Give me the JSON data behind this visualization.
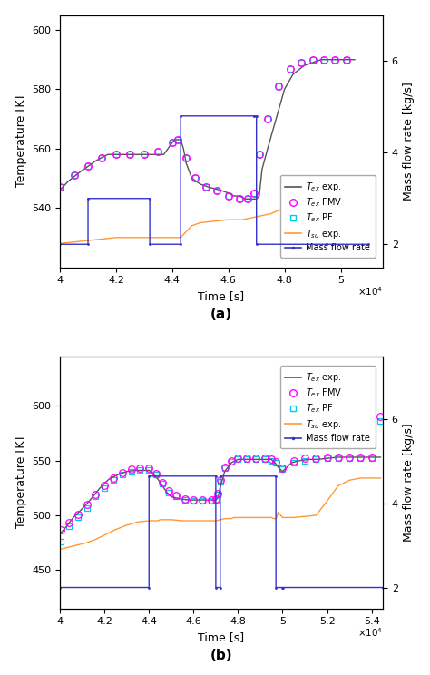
{
  "panel_a": {
    "xlim": [
      40000,
      51500
    ],
    "xticks": [
      40000,
      42000,
      44000,
      46000,
      48000,
      50000
    ],
    "xticklabels": [
      "4",
      "4.2",
      "4.4",
      "4.6",
      "4.8",
      "5"
    ],
    "temp_ylim": [
      520,
      605
    ],
    "temp_yticks": [
      540,
      560,
      580,
      600
    ],
    "mfr_ylim": [
      1.5,
      7.0
    ],
    "mfr_yticks": [
      2,
      4,
      6
    ],
    "T_ex_exp_x": [
      40000,
      40300,
      40700,
      41000,
      41300,
      41700,
      42000,
      42300,
      42700,
      43000,
      43300,
      43700,
      44000,
      44100,
      44200,
      44300,
      44400,
      44500,
      44700,
      45000,
      45300,
      45700,
      46000,
      46200,
      46400,
      46600,
      46800,
      47000,
      47100,
      47200,
      47400,
      47700,
      48000,
      48300,
      48700,
      49000,
      49300,
      49700,
      50000,
      50300,
      50500
    ],
    "T_ex_exp_y": [
      546,
      549,
      552,
      554,
      556,
      558,
      558,
      558,
      558,
      558,
      558,
      558,
      562,
      563,
      563,
      563,
      560,
      555,
      550,
      548,
      547,
      546,
      545,
      544,
      544,
      543,
      543,
      543,
      544,
      553,
      560,
      570,
      580,
      585,
      588,
      589,
      590,
      590,
      590,
      590,
      590
    ],
    "T_ex_FMV_x": [
      40000,
      40500,
      41000,
      41500,
      42000,
      42500,
      43000,
      43500,
      44000,
      44200,
      44500,
      44800,
      45200,
      45600,
      46000,
      46400,
      46700,
      46900,
      47100,
      47400,
      47800,
      48200,
      48600,
      49000,
      49400,
      49800,
      50200
    ],
    "T_ex_FMV_y": [
      547,
      551,
      554,
      557,
      558,
      558,
      558,
      559,
      562,
      563,
      557,
      550,
      547,
      546,
      544,
      543,
      543,
      545,
      558,
      570,
      581,
      587,
      589,
      590,
      590,
      590,
      590
    ],
    "T_ex_PF_x": [
      40000,
      40500,
      41000,
      41500,
      42000,
      42500,
      43000,
      43500,
      44000,
      44200,
      44500,
      44800,
      45200,
      45600,
      46000,
      46400,
      46700,
      46900,
      47100,
      47400,
      47800,
      48200,
      48600,
      49000,
      49400,
      49800,
      50200
    ],
    "T_ex_PF_y": [
      547,
      551,
      554,
      557,
      558,
      558,
      558,
      559,
      562,
      563,
      557,
      550,
      547,
      546,
      544,
      543,
      543,
      545,
      558,
      570,
      581,
      587,
      589,
      590,
      590,
      590,
      590
    ],
    "T_su_exp_x": [
      40000,
      41000,
      42000,
      43000,
      44000,
      44300,
      44400,
      44500,
      44600,
      44700,
      45000,
      46000,
      46500,
      47000,
      47500,
      48000,
      48500,
      49000,
      49500,
      50000,
      50500
    ],
    "T_su_exp_y": [
      528,
      529,
      530,
      530,
      530,
      530,
      531,
      532,
      533,
      534,
      535,
      536,
      536,
      537,
      538,
      540,
      540,
      541,
      541,
      541,
      541
    ],
    "mfr_x": [
      40000,
      41000,
      41001,
      43200,
      43201,
      44300,
      44301,
      46900,
      46901,
      47000,
      47001,
      49500,
      49501,
      51000
    ],
    "mfr_y": [
      2.0,
      2.0,
      3.0,
      3.0,
      2.0,
      2.0,
      4.8,
      4.8,
      4.8,
      4.8,
      2.0,
      2.0,
      2.0,
      2.0
    ],
    "label": "(a)"
  },
  "panel_b": {
    "xlim": [
      40000,
      54500
    ],
    "xticks": [
      40000,
      42000,
      44000,
      46000,
      48000,
      50000,
      52000,
      54000
    ],
    "xticklabels": [
      "4",
      "4.2",
      "4.4",
      "4.6",
      "4.8",
      "5",
      "5.2",
      "5.4"
    ],
    "temp_ylim": [
      415,
      645
    ],
    "temp_yticks": [
      450,
      500,
      550,
      600
    ],
    "mfr_ylim": [
      1.5,
      7.5
    ],
    "mfr_yticks": [
      2,
      4,
      6
    ],
    "T_ex_exp_x": [
      40050,
      40300,
      40600,
      41000,
      41400,
      41800,
      42200,
      42600,
      43000,
      43400,
      43800,
      44000,
      44100,
      44200,
      44300,
      44400,
      44600,
      44800,
      45000,
      45400,
      45800,
      46200,
      46600,
      47000,
      47100,
      47200,
      47400,
      47700,
      48000,
      48400,
      48800,
      49200,
      49500,
      49600,
      49700,
      49800,
      50000,
      50400,
      50800,
      51200,
      51600,
      52000,
      52500,
      53000,
      53500,
      54000,
      54400
    ],
    "T_ex_exp_y": [
      484,
      490,
      498,
      506,
      515,
      525,
      533,
      537,
      540,
      541,
      541,
      541,
      540,
      538,
      535,
      533,
      527,
      521,
      517,
      515,
      514,
      514,
      514,
      514,
      516,
      526,
      540,
      548,
      551,
      551,
      551,
      551,
      551,
      549,
      547,
      544,
      540,
      548,
      550,
      551,
      551,
      552,
      553,
      553,
      553,
      553,
      553
    ],
    "T_ex_FMV_x": [
      40050,
      40400,
      40800,
      41200,
      41600,
      42000,
      42400,
      42800,
      43200,
      43600,
      44000,
      44300,
      44600,
      44900,
      45200,
      45600,
      46000,
      46400,
      46800,
      47000,
      47100,
      47200,
      47400,
      47700,
      48000,
      48400,
      48800,
      49200,
      49500,
      49700,
      50000,
      50500,
      51000,
      51500,
      52000,
      52500,
      53000,
      53500,
      54000,
      54400
    ],
    "T_ex_FMV_y": [
      487,
      493,
      501,
      510,
      519,
      527,
      534,
      539,
      542,
      543,
      543,
      538,
      530,
      522,
      518,
      515,
      514,
      514,
      514,
      515,
      520,
      532,
      544,
      550,
      552,
      552,
      552,
      552,
      551,
      549,
      543,
      550,
      552,
      552,
      553,
      553,
      553,
      553,
      553,
      590
    ],
    "T_ex_PF_x": [
      40050,
      40400,
      40800,
      41200,
      41600,
      42000,
      42400,
      42800,
      43200,
      43600,
      44000,
      44300,
      44600,
      44900,
      45200,
      45600,
      46000,
      46400,
      46800,
      47000,
      47100,
      47200,
      47400,
      47700,
      48000,
      48400,
      48800,
      49200,
      49500,
      49700,
      50000,
      50500,
      51000,
      51500,
      52000,
      52500,
      53000,
      53500,
      54000,
      54400
    ],
    "T_ex_PF_y": [
      476,
      490,
      498,
      507,
      517,
      525,
      532,
      537,
      540,
      541,
      541,
      537,
      529,
      521,
      517,
      514,
      513,
      513,
      513,
      514,
      519,
      531,
      543,
      549,
      551,
      551,
      551,
      551,
      550,
      548,
      542,
      548,
      550,
      551,
      552,
      552,
      552,
      552,
      552,
      586
    ],
    "T_su_exp_x": [
      40000,
      40400,
      40800,
      41200,
      41600,
      42000,
      42500,
      43000,
      43500,
      44000,
      44300,
      44400,
      44500,
      44600,
      44700,
      45000,
      45500,
      46000,
      46500,
      47000,
      47200,
      47400,
      47600,
      47700,
      47800,
      48000,
      48500,
      49000,
      49500,
      49600,
      49700,
      49750,
      49800,
      50000,
      50500,
      51000,
      51500,
      52000,
      52500,
      53000,
      53500,
      54000,
      54400
    ],
    "T_su_exp_y": [
      469,
      471,
      473,
      475,
      478,
      482,
      487,
      491,
      494,
      495,
      495,
      495,
      496,
      496,
      496,
      496,
      495,
      495,
      495,
      495,
      496,
      497,
      497,
      497,
      498,
      498,
      498,
      498,
      498,
      497,
      497,
      499,
      503,
      498,
      498,
      499,
      500,
      513,
      527,
      532,
      534,
      534,
      534
    ],
    "mfr_x": [
      40000,
      44000,
      44001,
      47000,
      47001,
      47200,
      47201,
      49700,
      49701,
      50000,
      50001,
      54500
    ],
    "mfr_y": [
      2.0,
      2.0,
      4.65,
      4.65,
      2.0,
      2.0,
      4.65,
      4.65,
      2.0,
      2.0,
      2.0,
      2.0
    ],
    "label": "(b)"
  },
  "colors": {
    "T_ex_exp": "#555555",
    "T_ex_FMV": "#ff00ff",
    "T_ex_PF": "#00ccee",
    "T_su_exp": "#ff9933",
    "mass_flow": "#3333cc"
  },
  "xlabel": "Time [s]",
  "ylabel_temp": "Temperature [K]",
  "ylabel_mfr": "Mass flow rate [kg/s]"
}
